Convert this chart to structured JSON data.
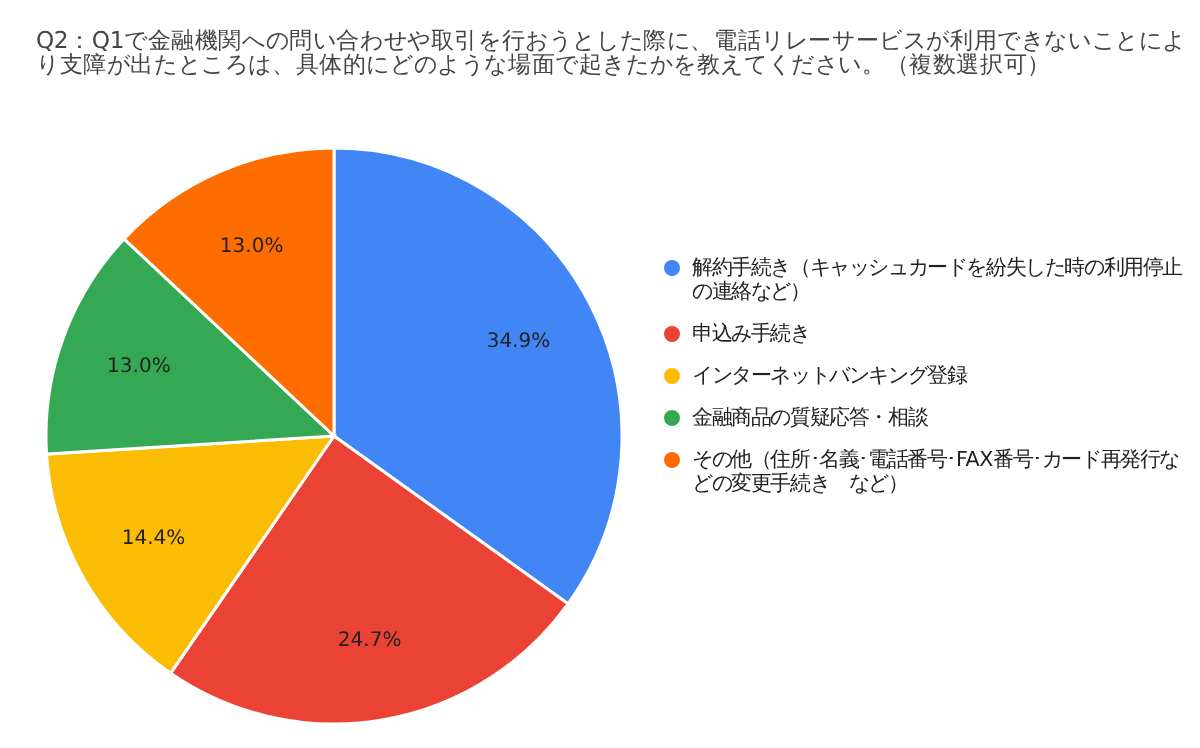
{
  "chart_data": {
    "type": "pie",
    "title": "Q2：Q1で金融機関への問い合わせや取引を行おうとした際に、電話リレーサービスが利用できないことにより支障が出たところは、具体的にどのような場面で起きたかを教えてください。（複数選択可）",
    "categories": [
      "解約手続き（キャッシュカードを紛失した時の利用停止の連絡など）",
      "申込み手続き",
      "インターネットバンキング登録",
      "金融商品の質疑応答・相談",
      "その他（住所･名義･電話番号･FAX番号･カード再発行などの変更手続き　など）"
    ],
    "values": [
      34.9,
      24.7,
      14.4,
      13.0,
      13.0
    ],
    "colors": [
      "#4285f4",
      "#ea4335",
      "#fbbc04",
      "#34a853",
      "#ff6d01"
    ],
    "value_labels": [
      "34.9%",
      "24.7%",
      "14.4%",
      "13.0%",
      "13.0%"
    ],
    "legend": "right"
  }
}
